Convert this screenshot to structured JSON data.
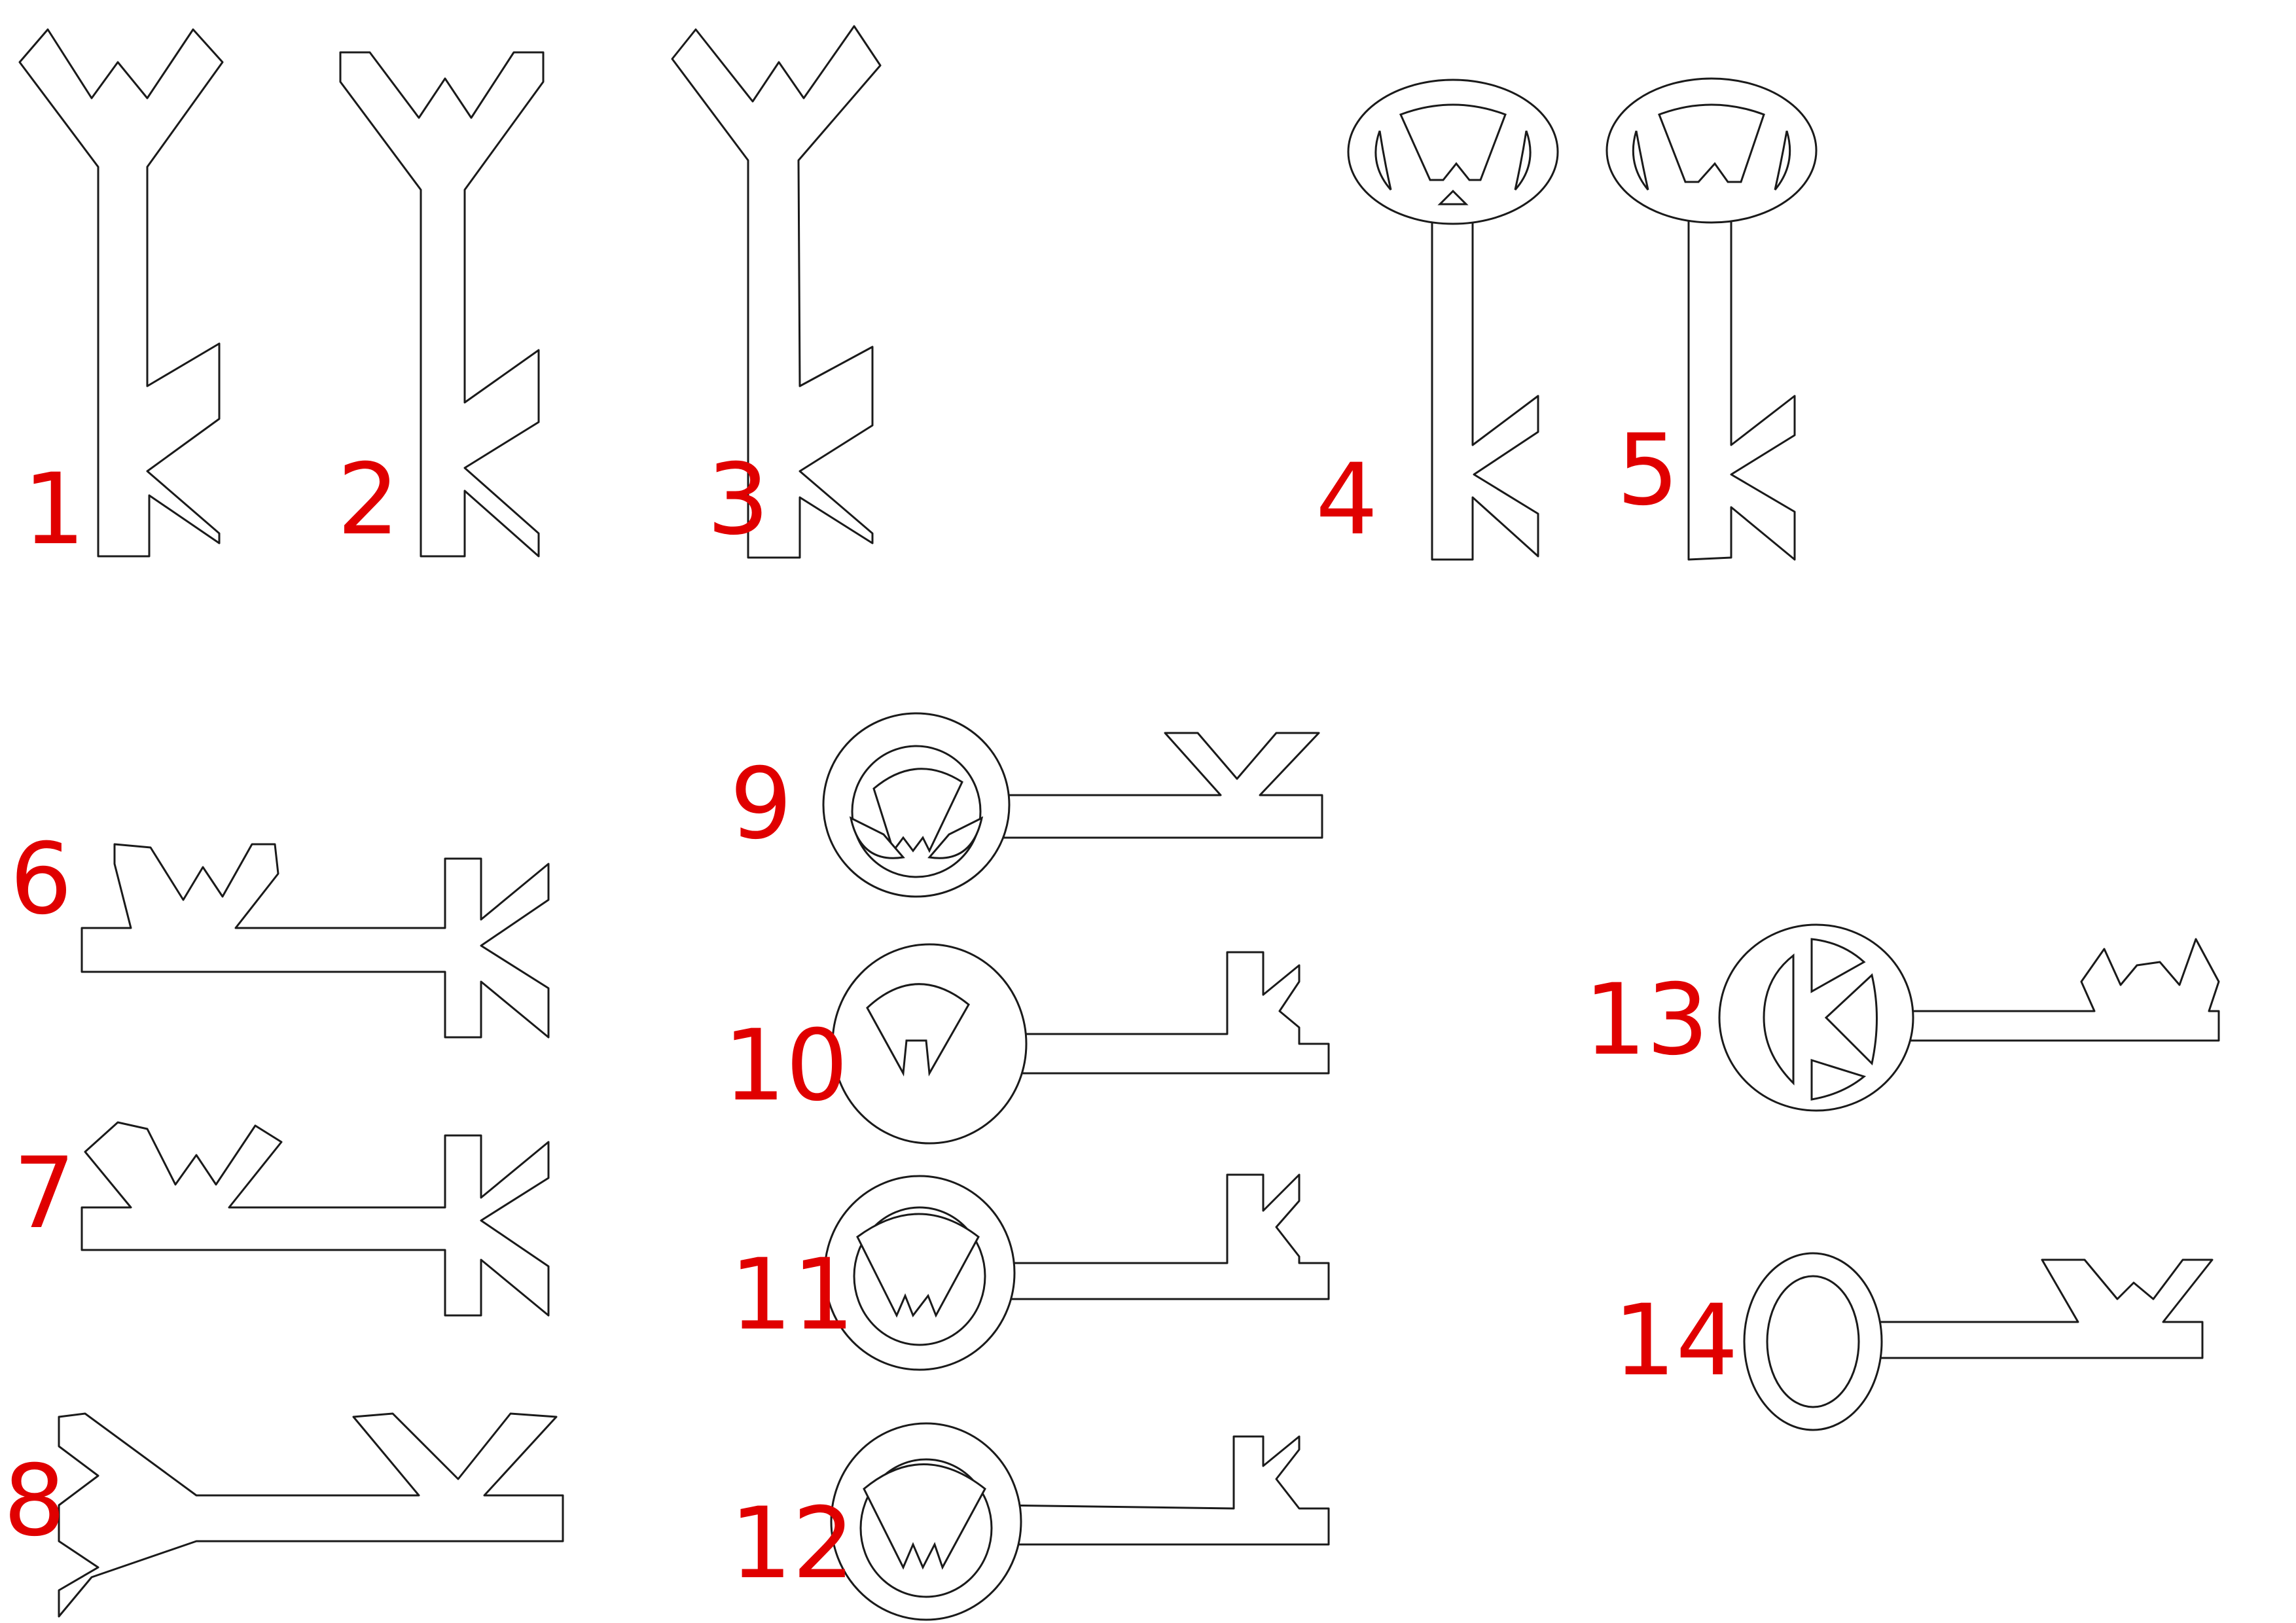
{
  "labels": {
    "k1": "1",
    "k2": "2",
    "k3": "3",
    "k4": "4",
    "k5": "5",
    "k6": "6",
    "k7": "7",
    "k8": "8",
    "k9": "9",
    "k10": "10",
    "k11": "11",
    "k12": "12",
    "k13": "13",
    "k14": "14"
  },
  "colors": {
    "label": "#e00000",
    "line": "#1a1a1a",
    "background": "#ffffff"
  }
}
